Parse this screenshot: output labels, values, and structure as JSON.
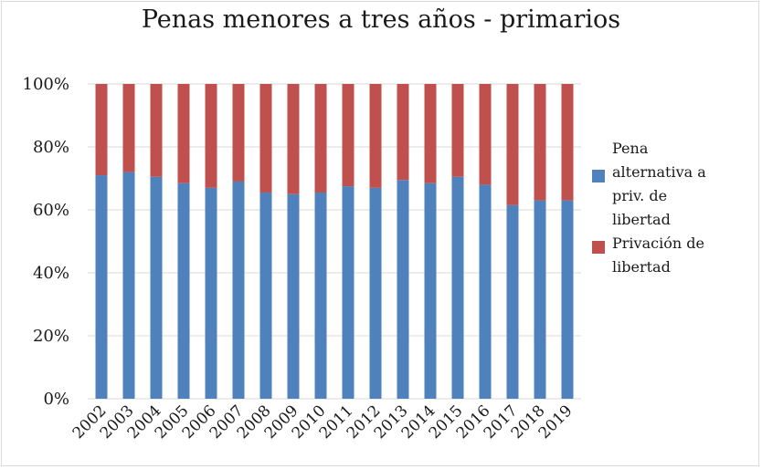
{
  "chart_data": {
    "type": "bar",
    "stacked": true,
    "percent": true,
    "title": "Penas menores a tres años - primarios",
    "categories": [
      "2002",
      "2003",
      "2004",
      "2005",
      "2006",
      "2007",
      "2008",
      "2009",
      "2010",
      "2011",
      "2012",
      "2013",
      "2014",
      "2015",
      "2016",
      "2017",
      "2018",
      "2019"
    ],
    "series": [
      {
        "name": "Pena alternativa a priv. de libertad",
        "color": "#4f81bd",
        "values": [
          71,
          72,
          70.5,
          68.5,
          67,
          69,
          65.5,
          65,
          65.5,
          67.5,
          67,
          69.5,
          68.5,
          70.5,
          68,
          61.5,
          63,
          63
        ]
      },
      {
        "name": "Privación de libertad",
        "color": "#c0504d",
        "values": [
          29,
          28,
          29.5,
          31.5,
          33,
          31,
          34.5,
          35,
          34.5,
          32.5,
          33,
          30.5,
          31.5,
          29.5,
          32,
          38.5,
          37,
          37
        ]
      }
    ],
    "yticks": [
      "0%",
      "20%",
      "40%",
      "60%",
      "80%",
      "100%"
    ],
    "ylim": [
      0,
      100
    ],
    "grid": true,
    "legend_position": "right",
    "legend_lines": [
      [
        "Pena",
        "alternativa a",
        "priv. de",
        "libertad"
      ],
      [
        "Privación de",
        "libertad"
      ]
    ]
  }
}
